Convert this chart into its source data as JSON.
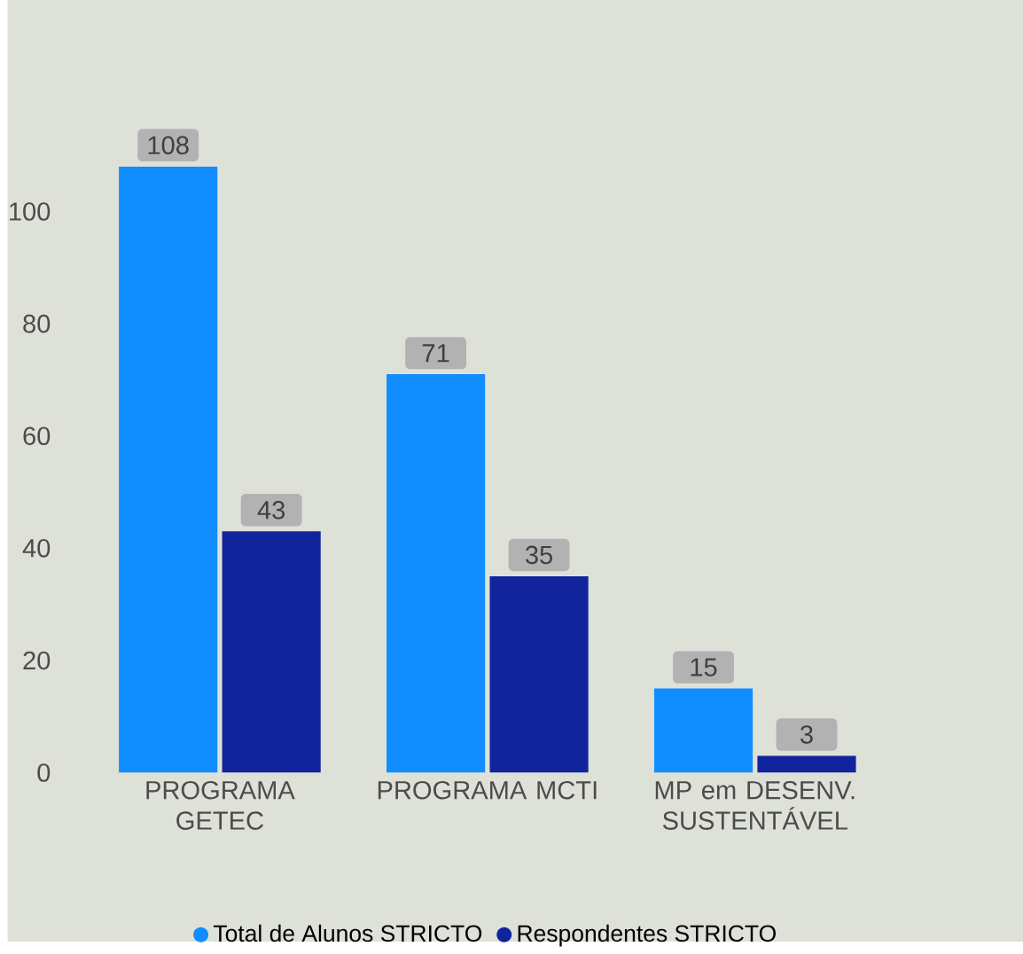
{
  "chart_data": {
    "type": "bar",
    "categories": [
      "PROGRAMA GETEC",
      "PROGRAMA MCTI",
      "MP em DESENV. SUSTENTÁVEL"
    ],
    "series": [
      {
        "name": "Total de Alunos STRICTO",
        "color": "#118dff",
        "values": [
          108,
          71,
          15
        ]
      },
      {
        "name": "Respondentes STRICTO",
        "color": "#12239e",
        "values": [
          43,
          35,
          3
        ]
      }
    ],
    "ylim": [
      0,
      115
    ],
    "yticks": [
      0,
      20,
      40,
      60,
      80,
      100
    ],
    "data_labels": true,
    "legend": "bottom",
    "grid": false
  }
}
